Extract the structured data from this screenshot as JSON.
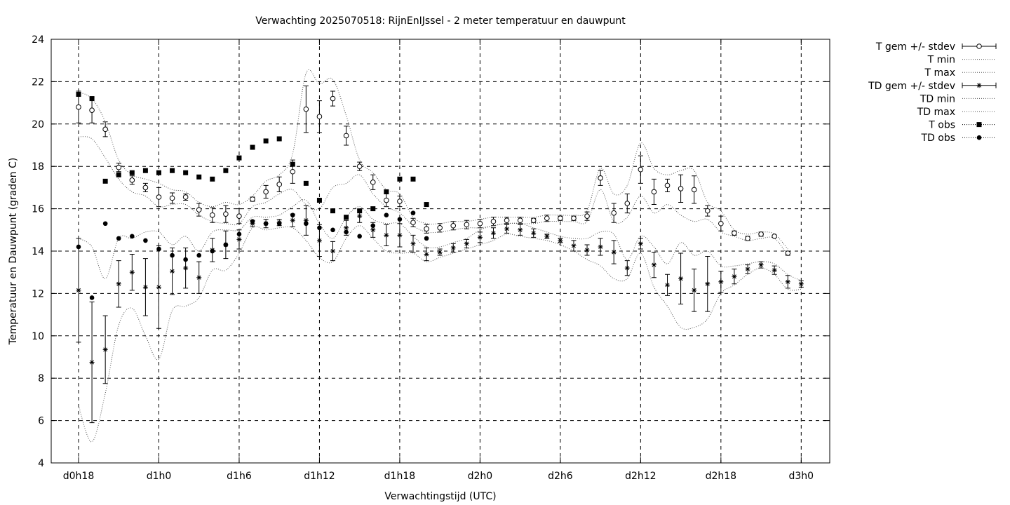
{
  "chart_data": {
    "type": "scatter",
    "title": "Verwachting 2025070518: RijnEnIJssel - 2 meter temperatuur en dauwpunt",
    "xlabel": "Verwachtingstijd (UTC)",
    "ylabel": "Temperatuur en Dauwpunt (graden C)",
    "xlim": [
      -1,
      55
    ],
    "ylim": [
      4,
      24
    ],
    "x_ticks": [
      {
        "x": 0,
        "label": "d0h18"
      },
      {
        "x": 6,
        "label": "d1h0"
      },
      {
        "x": 12,
        "label": "d1h6"
      },
      {
        "x": 18,
        "label": "d1h12"
      },
      {
        "x": 24,
        "label": "d1h18"
      },
      {
        "x": 30,
        "label": "d2h0"
      },
      {
        "x": 36,
        "label": "d2h6"
      },
      {
        "x": 42,
        "label": "d2h12"
      },
      {
        "x": 48,
        "label": "d2h18"
      },
      {
        "x": 54,
        "label": "d3h0"
      }
    ],
    "y_ticks": [
      4,
      6,
      8,
      10,
      12,
      14,
      16,
      18,
      20,
      22,
      24
    ],
    "grid": true,
    "legend_position": "outside-right-top",
    "series": [
      {
        "name": "T gem +/- stdev",
        "style": "errorbar-open-circle",
        "x": [
          0,
          1,
          2,
          3,
          4,
          5,
          6,
          7,
          8,
          9,
          10,
          11,
          12,
          13,
          14,
          15,
          16,
          17,
          18,
          19,
          20,
          21,
          22,
          23,
          24,
          25,
          26,
          27,
          28,
          29,
          30,
          31,
          32,
          33,
          34,
          35,
          36,
          37,
          38,
          39,
          40,
          41,
          42,
          43,
          44,
          45,
          46,
          47,
          48,
          49,
          50,
          51,
          52,
          53,
          54
        ],
        "mean": [
          20.8,
          20.65,
          19.75,
          17.95,
          17.35,
          17.0,
          16.55,
          16.5,
          16.55,
          15.95,
          15.7,
          15.75,
          15.65,
          16.45,
          16.8,
          17.15,
          17.75,
          20.7,
          20.35,
          21.2,
          19.45,
          18.0,
          17.25,
          16.4,
          16.35,
          15.35,
          15.05,
          15.1,
          15.2,
          15.25,
          15.3,
          15.4,
          15.45,
          15.45,
          15.45,
          15.55,
          15.55,
          15.55,
          15.65,
          17.45,
          15.8,
          16.25,
          17.85,
          16.8,
          17.1,
          16.95,
          16.9,
          15.9,
          15.3,
          14.85,
          14.6,
          14.8,
          14.7,
          13.9,
          null
        ],
        "stdev": [
          0.75,
          0.6,
          0.35,
          0.2,
          0.2,
          0.2,
          0.45,
          0.25,
          0.15,
          0.3,
          0.35,
          0.4,
          0.35,
          0.1,
          0.3,
          0.35,
          0.55,
          1.1,
          0.75,
          0.35,
          0.45,
          0.2,
          0.35,
          0.3,
          0.25,
          0.2,
          0.2,
          0.2,
          0.2,
          0.2,
          0.2,
          0.2,
          0.15,
          0.15,
          0.1,
          0.15,
          0.1,
          0.1,
          0.2,
          0.35,
          0.45,
          0.45,
          0.65,
          0.6,
          0.3,
          0.65,
          0.65,
          0.25,
          0.35,
          0.1,
          0.1,
          0.1,
          0.05,
          0.1,
          null
        ]
      },
      {
        "name": "T min",
        "style": "dotted-line",
        "x": [
          0,
          1,
          2,
          3,
          4,
          5,
          6,
          7,
          8,
          9,
          10,
          11,
          12,
          13,
          14,
          15,
          16,
          17,
          18,
          19,
          20,
          21,
          22,
          23,
          24,
          25,
          26,
          27,
          28,
          29,
          30,
          31,
          32,
          33,
          34,
          35,
          36,
          37,
          38,
          39,
          40,
          41,
          42,
          43,
          44,
          45,
          46,
          47,
          48,
          49,
          50,
          51,
          52,
          53,
          54
        ],
        "values": [
          19.4,
          19.3,
          18.4,
          17.4,
          16.8,
          16.6,
          16.1,
          16.2,
          16.2,
          15.7,
          15.4,
          15.3,
          15.3,
          16.1,
          16.3,
          16.7,
          16.9,
          16.2,
          16.0,
          17.0,
          17.2,
          17.6,
          16.7,
          16.1,
          15.8,
          15.2,
          14.9,
          14.9,
          15.0,
          15.1,
          15.1,
          15.2,
          15.3,
          15.3,
          15.3,
          15.4,
          15.4,
          15.4,
          15.4,
          16.9,
          15.4,
          15.6,
          16.6,
          15.8,
          16.2,
          15.7,
          15.4,
          15.5,
          14.9,
          14.7,
          14.5,
          14.6,
          14.6,
          13.8,
          null
        ]
      },
      {
        "name": "T max",
        "style": "dotted-line",
        "x": [
          0,
          1,
          2,
          3,
          4,
          5,
          6,
          7,
          8,
          9,
          10,
          11,
          12,
          13,
          14,
          15,
          16,
          17,
          18,
          19,
          20,
          21,
          22,
          23,
          24,
          25,
          26,
          27,
          28,
          29,
          30,
          31,
          32,
          33,
          34,
          35,
          36,
          37,
          38,
          39,
          40,
          41,
          42,
          43,
          44,
          45,
          46,
          47,
          48,
          49,
          50,
          51,
          52,
          53,
          54
        ],
        "values": [
          21.5,
          21.2,
          20.1,
          18.3,
          17.6,
          17.4,
          17.2,
          16.9,
          16.8,
          16.3,
          16.1,
          16.3,
          16.2,
          16.6,
          17.3,
          17.6,
          18.6,
          22.4,
          21.9,
          22.1,
          20.4,
          18.3,
          17.7,
          16.9,
          16.7,
          15.6,
          15.3,
          15.3,
          15.4,
          15.4,
          15.5,
          15.6,
          15.6,
          15.6,
          15.6,
          15.7,
          15.7,
          15.7,
          15.9,
          17.9,
          16.7,
          17.1,
          19.1,
          17.9,
          17.6,
          17.8,
          17.8,
          16.3,
          15.9,
          15.0,
          14.8,
          14.9,
          14.8,
          14.1,
          null
        ]
      },
      {
        "name": "TD gem +/- stdev",
        "style": "errorbar-star",
        "x": [
          0,
          1,
          2,
          3,
          4,
          5,
          6,
          7,
          8,
          9,
          10,
          11,
          12,
          13,
          14,
          15,
          16,
          17,
          18,
          19,
          20,
          21,
          22,
          23,
          24,
          25,
          26,
          27,
          28,
          29,
          30,
          31,
          32,
          33,
          34,
          35,
          36,
          37,
          38,
          39,
          40,
          41,
          42,
          43,
          44,
          45,
          46,
          47,
          48,
          49,
          50,
          51,
          52,
          53,
          54
        ],
        "mean": [
          12.15,
          8.75,
          9.35,
          12.45,
          13.0,
          12.3,
          12.3,
          13.05,
          13.2,
          12.75,
          14.05,
          14.3,
          14.55,
          15.3,
          15.3,
          15.35,
          15.45,
          15.45,
          14.5,
          14.0,
          15.1,
          15.65,
          15.0,
          14.75,
          14.75,
          14.35,
          13.85,
          13.95,
          14.15,
          14.35,
          14.65,
          14.85,
          15.05,
          15.0,
          14.85,
          14.7,
          14.5,
          14.25,
          14.05,
          14.2,
          13.95,
          13.2,
          14.35,
          13.35,
          12.4,
          12.7,
          12.15,
          12.45,
          12.55,
          12.8,
          13.15,
          13.35,
          13.1,
          12.55,
          12.45
        ],
        "stdev": [
          2.45,
          2.85,
          1.6,
          1.1,
          0.85,
          1.35,
          1.95,
          1.1,
          0.95,
          0.75,
          0.55,
          0.65,
          0.45,
          0.15,
          0.2,
          0.15,
          0.3,
          0.7,
          0.75,
          0.45,
          0.35,
          0.3,
          0.35,
          0.5,
          0.55,
          0.4,
          0.3,
          0.15,
          0.2,
          0.2,
          0.25,
          0.25,
          0.2,
          0.25,
          0.2,
          0.1,
          0.1,
          0.25,
          0.25,
          0.4,
          0.55,
          0.35,
          0.25,
          0.6,
          0.5,
          1.2,
          1.0,
          1.3,
          0.5,
          0.35,
          0.2,
          0.15,
          0.2,
          0.3,
          0.15
        ]
      },
      {
        "name": "TD min",
        "style": "dotted-line",
        "x": [
          0,
          1,
          2,
          3,
          4,
          5,
          6,
          7,
          8,
          9,
          10,
          11,
          12,
          13,
          14,
          15,
          16,
          17,
          18,
          19,
          20,
          21,
          22,
          23,
          24,
          25,
          26,
          27,
          28,
          29,
          30,
          31,
          32,
          33,
          34,
          35,
          36,
          37,
          38,
          39,
          40,
          41,
          42,
          43,
          44,
          45,
          46,
          47,
          48,
          49,
          50,
          51,
          52,
          53,
          54
        ],
        "values": [
          6.7,
          5.0,
          7.3,
          10.5,
          11.3,
          10.0,
          8.9,
          11.2,
          11.4,
          11.8,
          13.1,
          13.1,
          13.9,
          15.1,
          15.0,
          15.1,
          15.1,
          14.5,
          13.7,
          13.5,
          14.6,
          15.2,
          14.6,
          14.0,
          13.9,
          13.9,
          13.5,
          13.7,
          13.9,
          14.1,
          14.3,
          14.5,
          14.8,
          14.7,
          14.6,
          14.5,
          14.3,
          14.0,
          13.6,
          13.3,
          12.7,
          12.7,
          13.9,
          12.3,
          11.4,
          10.4,
          10.4,
          10.8,
          12.0,
          12.4,
          12.9,
          13.2,
          12.9,
          12.2,
          12.2
        ]
      },
      {
        "name": "TD max",
        "style": "dotted-line",
        "x": [
          0,
          1,
          2,
          3,
          4,
          5,
          6,
          7,
          8,
          9,
          10,
          11,
          12,
          13,
          14,
          15,
          16,
          17,
          18,
          19,
          20,
          21,
          22,
          23,
          24,
          25,
          26,
          27,
          28,
          29,
          30,
          31,
          32,
          33,
          34,
          35,
          36,
          37,
          38,
          39,
          40,
          41,
          42,
          43,
          44,
          45,
          46,
          47,
          48,
          49,
          50,
          51,
          52,
          53,
          54
        ],
        "values": [
          14.6,
          14.2,
          12.7,
          14.6,
          14.6,
          14.9,
          14.9,
          14.3,
          14.7,
          14.0,
          14.9,
          15.0,
          15.0,
          15.6,
          15.6,
          15.7,
          16.1,
          16.4,
          15.3,
          14.6,
          15.6,
          16.1,
          15.5,
          15.3,
          15.3,
          14.7,
          14.2,
          14.2,
          14.4,
          14.6,
          15.0,
          15.2,
          15.3,
          15.3,
          15.1,
          14.9,
          14.7,
          14.6,
          14.6,
          14.9,
          14.8,
          13.6,
          14.7,
          14.2,
          13.4,
          14.4,
          13.8,
          14.0,
          13.3,
          13.3,
          13.4,
          13.5,
          13.4,
          12.9,
          12.6
        ]
      },
      {
        "name": "T obs",
        "style": "filled-square",
        "x": [
          0,
          1,
          2,
          3,
          4,
          5,
          6,
          7,
          8,
          9,
          10,
          11,
          12,
          13,
          14,
          15,
          16,
          17,
          18,
          19,
          20,
          21,
          22,
          23,
          24,
          25,
          26
        ],
        "values": [
          21.4,
          21.2,
          17.3,
          17.6,
          17.7,
          17.8,
          17.7,
          17.8,
          17.7,
          17.5,
          17.4,
          17.8,
          18.4,
          18.9,
          19.2,
          19.3,
          18.1,
          17.2,
          16.4,
          15.9,
          15.6,
          15.9,
          16.0,
          16.8,
          17.4,
          17.4,
          16.2
        ]
      },
      {
        "name": "TD obs",
        "style": "filled-circle",
        "x": [
          0,
          1,
          2,
          3,
          4,
          5,
          6,
          7,
          8,
          9,
          10,
          11,
          12,
          13,
          14,
          15,
          16,
          17,
          18,
          19,
          20,
          21,
          22,
          23,
          24,
          25,
          26
        ],
        "values": [
          14.2,
          11.8,
          15.3,
          14.6,
          14.7,
          14.5,
          14.1,
          13.8,
          13.6,
          13.8,
          14.0,
          14.3,
          14.8,
          15.4,
          15.3,
          15.3,
          15.7,
          15.3,
          15.1,
          15.0,
          14.9,
          14.7,
          15.2,
          15.7,
          15.5,
          15.8,
          14.6
        ]
      }
    ]
  }
}
